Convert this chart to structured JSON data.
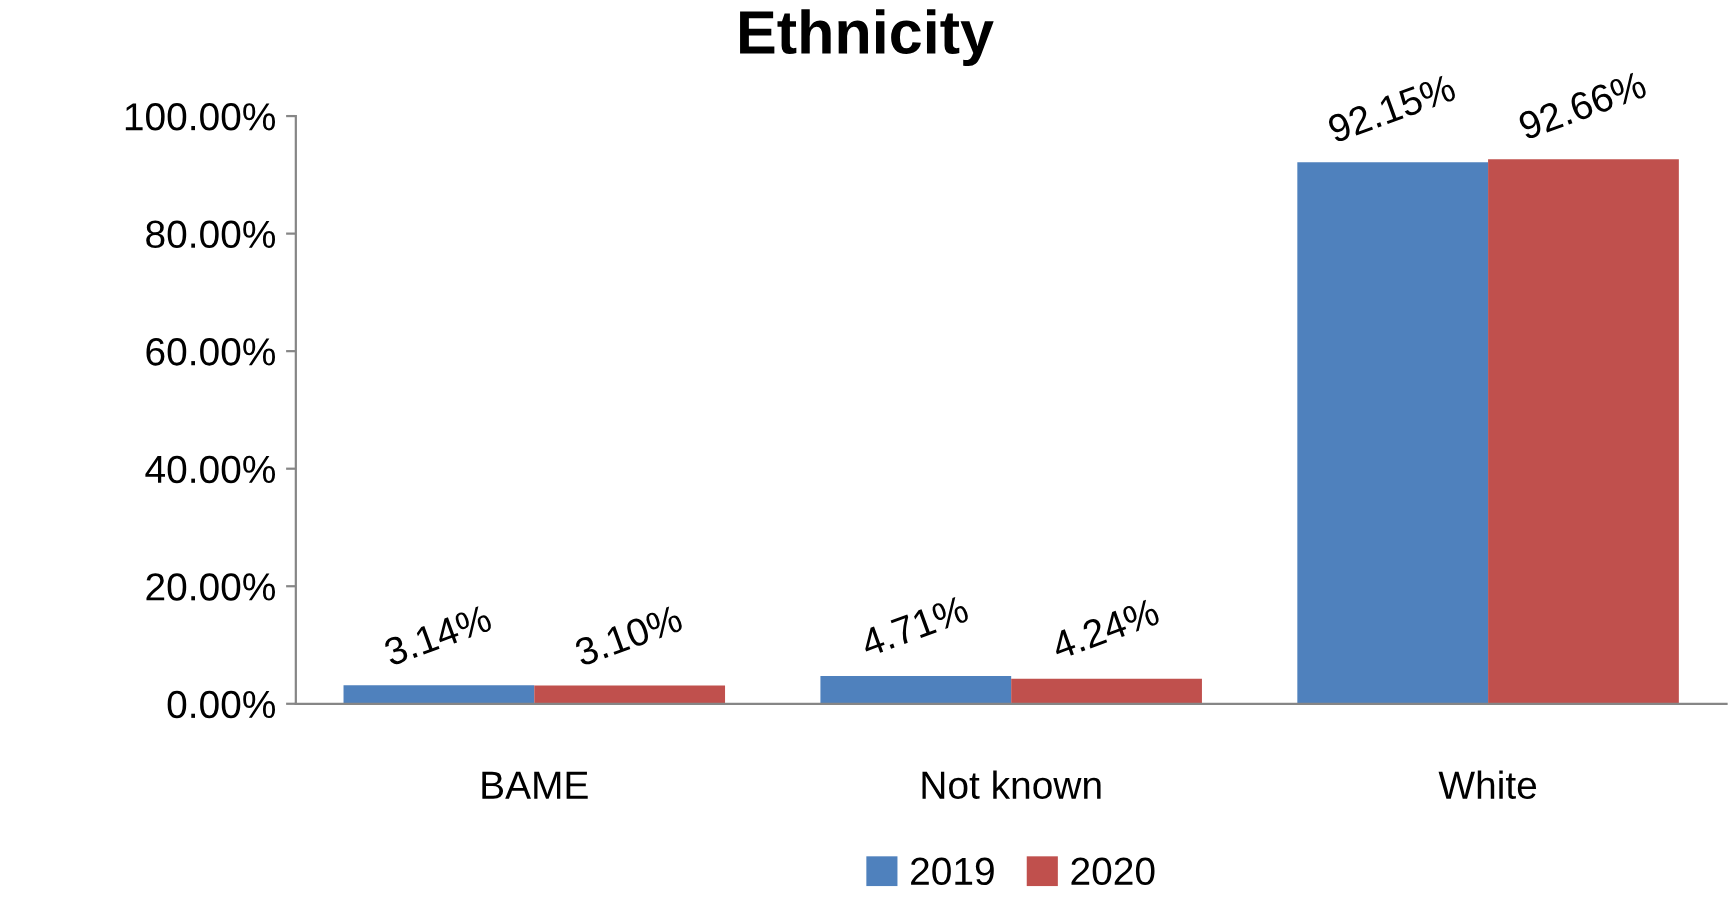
{
  "chart_data": {
    "type": "bar",
    "title": "Ethnicity",
    "categories": [
      "BAME",
      "Not known",
      "White"
    ],
    "series": [
      {
        "name": "2019",
        "color": "#4f81bd",
        "values": [
          3.14,
          4.71,
          92.15
        ],
        "value_labels": [
          "3.14%",
          "4.71%",
          "92.15%"
        ]
      },
      {
        "name": "2020",
        "color": "#c0504d",
        "values": [
          3.1,
          4.24,
          92.66
        ],
        "value_labels": [
          "3.10%",
          "4.24%",
          "92.66%"
        ]
      }
    ],
    "ylim": [
      0,
      100
    ],
    "yticks": [
      {
        "value": 0,
        "label": "0.00%"
      },
      {
        "value": 20,
        "label": "20.00%"
      },
      {
        "value": 40,
        "label": "40.00%"
      },
      {
        "value": 60,
        "label": "60.00%"
      },
      {
        "value": 80,
        "label": "80.00%"
      },
      {
        "value": 100,
        "label": "100.00%"
      }
    ],
    "grid": false,
    "legend": "bottom"
  }
}
